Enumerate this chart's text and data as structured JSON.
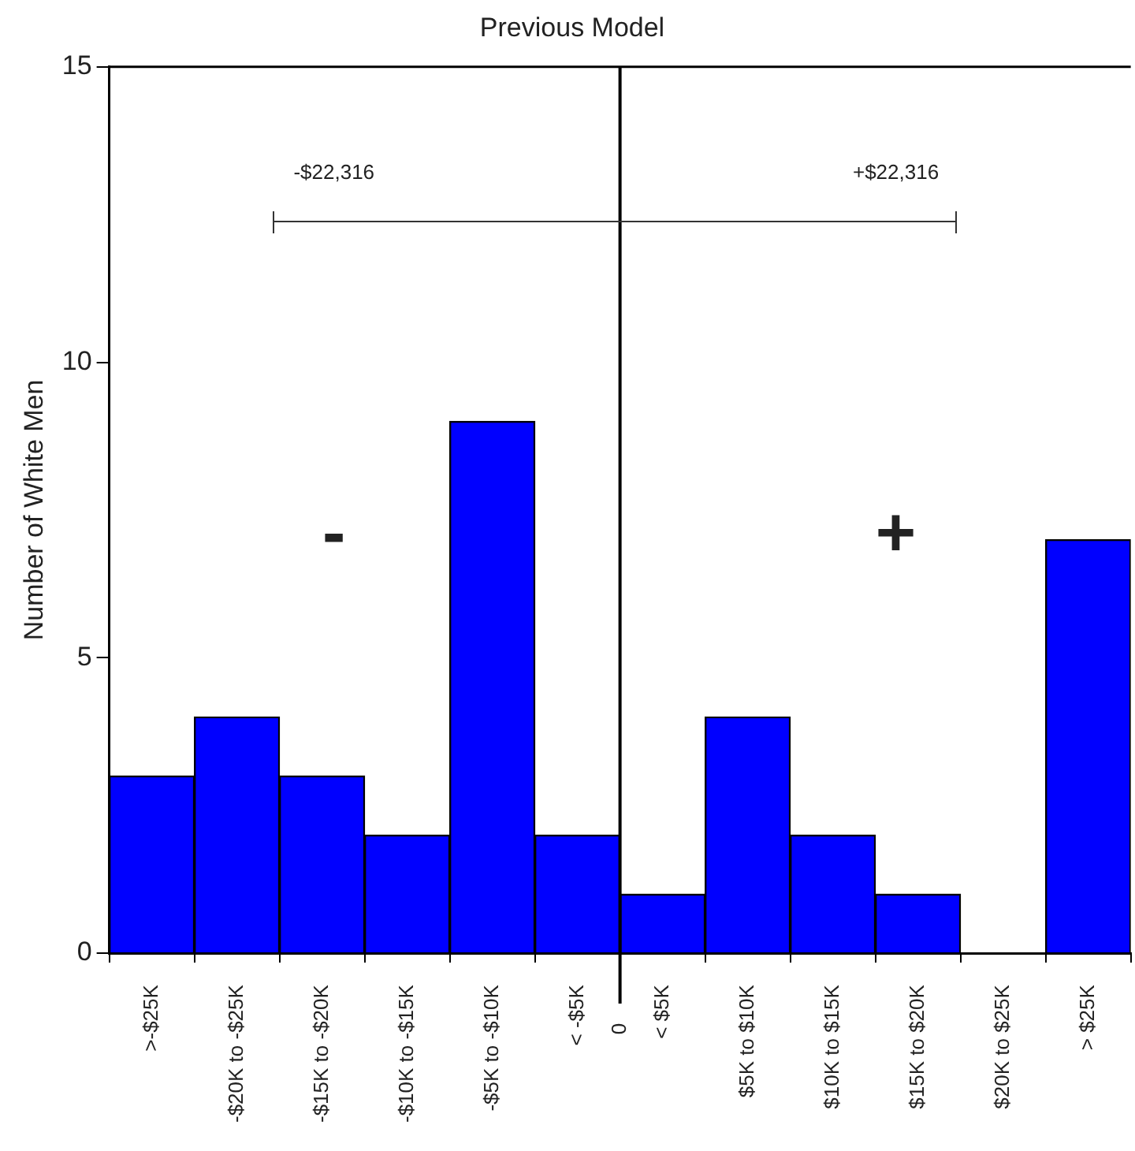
{
  "chart_data": {
    "type": "bar",
    "title": "Previous Model",
    "ylabel": "Number of White Men",
    "categories": [
      ">-$25K",
      "-$20K to -$25K",
      "-$15K to -$20K",
      "-$10K to -$15K",
      "-$5K to -$10K",
      "< -$5K",
      "< $5K",
      "$5K to $10K",
      "$10K to $15K",
      "$15K to $20K",
      "$20K to $25K",
      "> $25K"
    ],
    "values": [
      3,
      4,
      3,
      2,
      9,
      2,
      1,
      4,
      2,
      1,
      0,
      7
    ],
    "color": "#0000ff",
    "ylim": [
      0,
      15
    ],
    "yticks": [
      0,
      5,
      10,
      15
    ],
    "annotations": [
      "-$22,316",
      "+$22,316",
      "-",
      "+",
      "0"
    ],
    "grid": false,
    "legend": false
  }
}
